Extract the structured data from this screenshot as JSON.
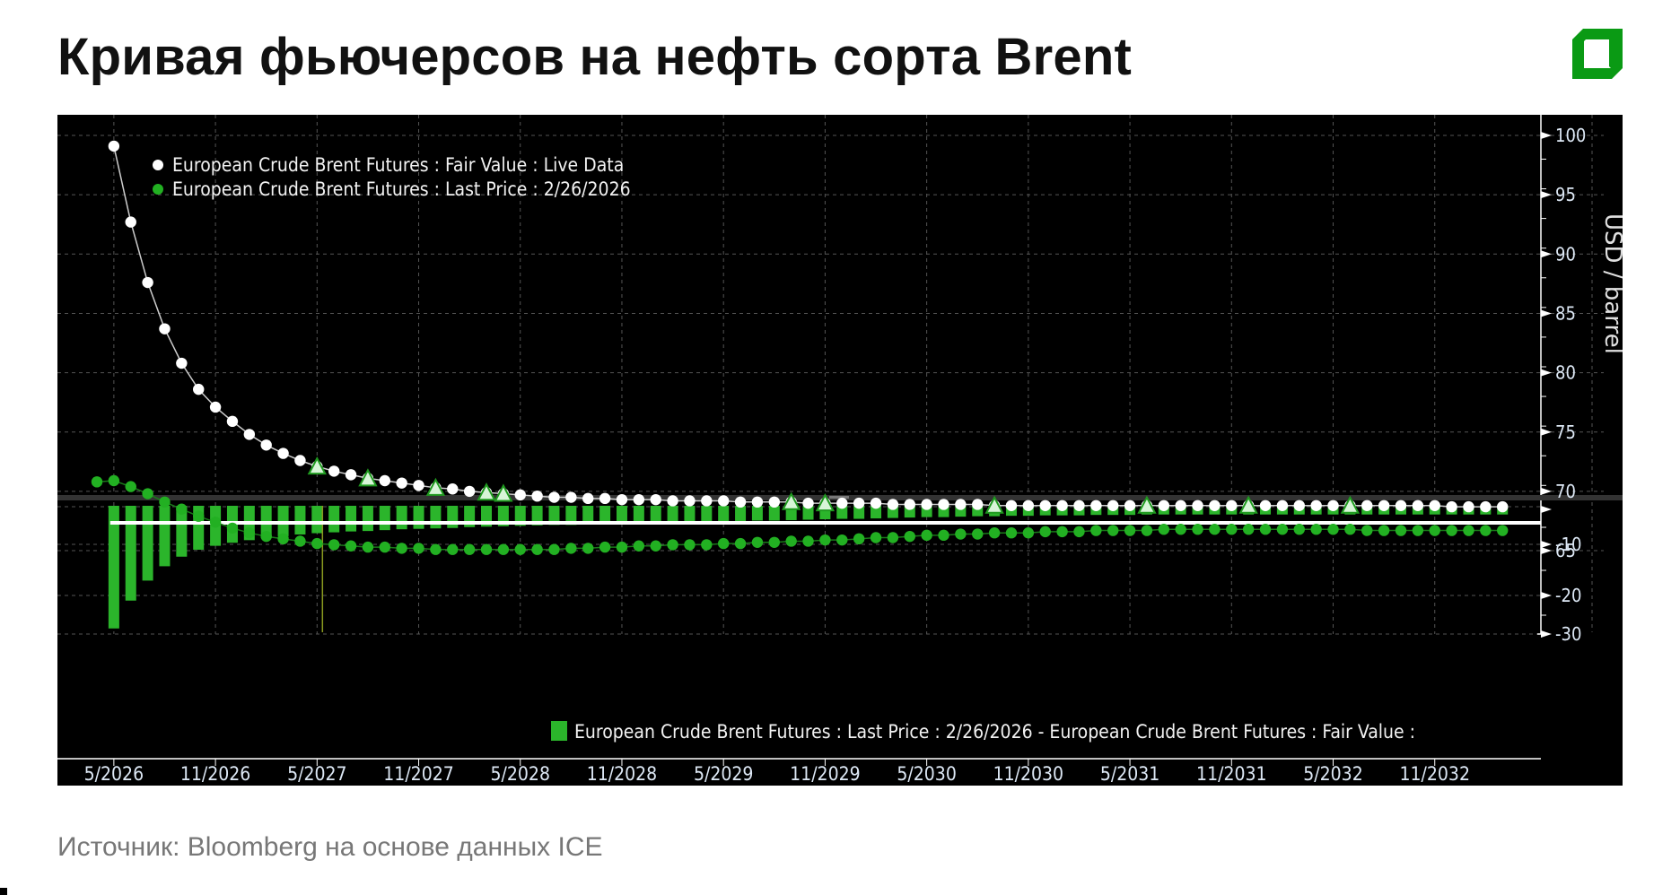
{
  "title": "Кривая фьючерсов на нефть сорта Brent",
  "source": "Источник: Bloomberg на основе данных ICE",
  "colors": {
    "brand": "#0a9a14",
    "fair_value": "#ffffff",
    "last_price": "#22b022",
    "bar": "#2bb52b",
    "background": "#000000",
    "grid": "#555555",
    "axis_text": "#dde8f5"
  },
  "chart_data": [
    {
      "type": "line",
      "title": "",
      "ylabel": "USD / barrel",
      "ylim": [
        61,
        102
      ],
      "yticks": [
        65,
        70,
        75,
        80,
        85,
        90,
        95,
        100
      ],
      "grid": true,
      "legend_position": "top-left",
      "legend": [
        "European Crude Brent Futures : Fair Value : Live Data",
        "European Crude Brent Futures : Last Price : 2/26/2026"
      ],
      "x_tick_labels": [
        "5/2026",
        "11/2026",
        "5/2027",
        "11/2027",
        "5/2028",
        "11/2028",
        "5/2029",
        "11/2029",
        "5/2030",
        "11/2030",
        "5/2031",
        "11/2031",
        "5/2032",
        "11/2032"
      ],
      "x_start": "4/2026",
      "x_step": "1 month",
      "series": [
        {
          "name": "European Crude Brent Futures : Fair Value : Live Data",
          "start": "5/2026",
          "marker": "circle",
          "color": "#ffffff",
          "values": [
            99.1,
            92.7,
            87.6,
            83.7,
            80.8,
            78.6,
            77.1,
            75.9,
            74.8,
            73.9,
            73.2,
            72.6,
            72.1,
            71.7,
            71.4,
            71.1,
            70.9,
            70.7,
            70.5,
            70.3,
            70.2,
            70.0,
            69.9,
            69.8,
            69.7,
            69.6,
            69.5,
            69.5,
            69.4,
            69.4,
            69.3,
            69.3,
            69.3,
            69.2,
            69.2,
            69.2,
            69.2,
            69.1,
            69.1,
            69.1,
            69.1,
            69.0,
            69.0,
            69.0,
            69.0,
            69.0,
            68.9,
            68.9,
            68.9,
            68.9,
            68.9,
            68.9,
            68.8,
            68.8,
            68.8,
            68.8,
            68.8,
            68.8,
            68.8,
            68.8,
            68.8,
            68.8,
            68.8,
            68.8,
            68.8,
            68.8,
            68.8,
            68.8,
            68.8,
            68.8,
            68.8,
            68.8,
            68.8,
            68.8,
            68.8,
            68.8,
            68.8,
            68.8,
            68.8,
            68.7,
            68.7,
            68.7,
            68.7
          ]
        },
        {
          "name": "European Crude Brent Futures : Last Price : 2/26/2026",
          "start": "4/2026",
          "marker": "circle",
          "color": "#22b022",
          "values": [
            70.8,
            70.9,
            70.4,
            69.8,
            69.1,
            68.5,
            67.9,
            67.4,
            66.9,
            66.5,
            66.2,
            66.0,
            65.8,
            65.6,
            65.5,
            65.4,
            65.3,
            65.3,
            65.2,
            65.2,
            65.1,
            65.1,
            65.1,
            65.1,
            65.1,
            65.1,
            65.1,
            65.1,
            65.2,
            65.2,
            65.3,
            65.3,
            65.4,
            65.4,
            65.5,
            65.5,
            65.5,
            65.6,
            65.6,
            65.7,
            65.7,
            65.8,
            65.8,
            65.9,
            65.9,
            66.0,
            66.1,
            66.1,
            66.2,
            66.3,
            66.3,
            66.4,
            66.4,
            66.5,
            66.5,
            66.5,
            66.6,
            66.6,
            66.6,
            66.7,
            66.7,
            66.7,
            66.7,
            66.8,
            66.8,
            66.8,
            66.8,
            66.8,
            66.8,
            66.8,
            66.8,
            66.8,
            66.8,
            66.8,
            66.8,
            66.7,
            66.7,
            66.7,
            66.7,
            66.7,
            66.7,
            66.7,
            66.7,
            66.7
          ]
        }
      ],
      "triangle_markers_months_from_start": [
        13,
        16,
        20,
        23,
        24,
        41,
        43,
        53,
        62,
        68,
        74
      ]
    },
    {
      "type": "bar",
      "title": "",
      "ylim": [
        -32,
        2
      ],
      "yticks": [
        -10,
        -20,
        -30
      ],
      "grid": true,
      "legend_position": "bottom-right",
      "legend": [
        "European Crude Brent Futures : Last Price : 2/26/2026 - European Crude Brent Futures : Fair Value :"
      ],
      "series": [
        {
          "name": "European Crude Brent Futures : Last Price : 2/26/2026 - European Crude Brent Futures : Fair Value :",
          "start": "5/2026",
          "color": "#2bb52b",
          "values": [
            -28.2,
            -21.8,
            -17.2,
            -13.9,
            -11.7,
            -10.1,
            -9.2,
            -8.5,
            -7.9,
            -7.4,
            -7.0,
            -6.6,
            -6.3,
            -6.1,
            -5.9,
            -5.8,
            -5.6,
            -5.4,
            -5.3,
            -5.2,
            -5.1,
            -4.9,
            -4.8,
            -4.7,
            -4.6,
            -4.5,
            -4.4,
            -4.4,
            -4.2,
            -4.1,
            -4.0,
            -3.9,
            -3.9,
            -3.8,
            -3.7,
            -3.7,
            -3.6,
            -3.5,
            -3.4,
            -3.4,
            -3.3,
            -3.2,
            -3.1,
            -3.0,
            -3.0,
            -2.9,
            -2.8,
            -2.7,
            -2.6,
            -2.6,
            -2.5,
            -2.4,
            -2.4,
            -2.3,
            -2.3,
            -2.2,
            -2.2,
            -2.2,
            -2.1,
            -2.1,
            -2.1,
            -2.0,
            -2.0,
            -2.0,
            -2.0,
            -2.0,
            -2.0,
            -2.0,
            -2.0,
            -2.0,
            -2.0,
            -2.0,
            -2.0,
            -2.0,
            -2.0,
            -2.0,
            -2.0,
            -2.0,
            -2.0,
            -2.0,
            -2.0,
            -2.0,
            -2.0
          ]
        }
      ],
      "reference_line": -4.5
    }
  ]
}
